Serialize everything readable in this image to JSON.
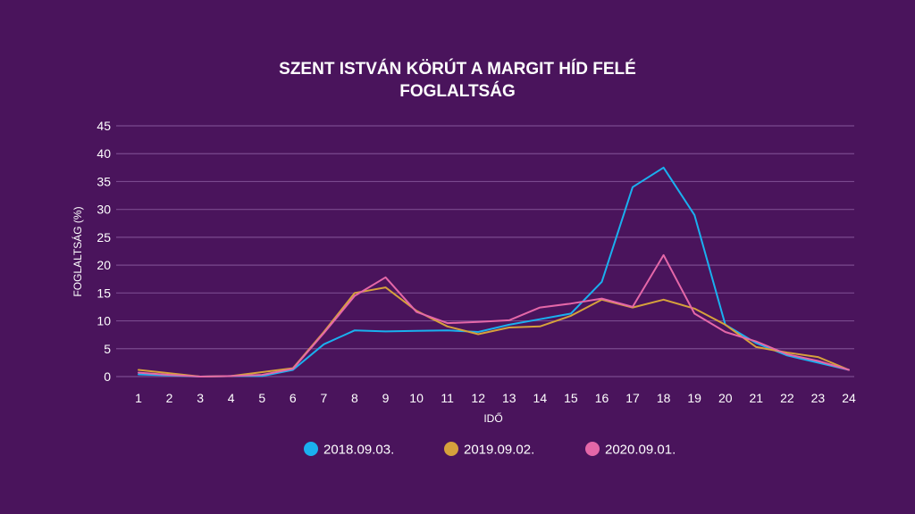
{
  "chart_data": {
    "type": "line",
    "title_line1": "SZENT ISTVÁN KÖRÚT A MARGIT HÍD FELÉ",
    "title_line2": "FOGLALTSÁG",
    "xlabel": "IDŐ",
    "ylabel": "FOGLALTSÁG (%)",
    "x": [
      1,
      2,
      3,
      4,
      5,
      6,
      7,
      8,
      9,
      10,
      11,
      12,
      13,
      14,
      15,
      16,
      17,
      18,
      19,
      20,
      21,
      22,
      23,
      24
    ],
    "y_ticks": [
      "0",
      "5",
      "10",
      "15",
      "20",
      "25",
      "30",
      "35",
      "40",
      "45"
    ],
    "ylim": [
      0,
      45
    ],
    "grid": true,
    "legend_position": "bottom",
    "series": [
      {
        "name": "2018.09.03.",
        "color": "#1ab0ef",
        "values": [
          0.4,
          0.2,
          0.0,
          0.1,
          0.1,
          1.2,
          5.8,
          8.3,
          8.1,
          8.2,
          8.3,
          8.0,
          9.3,
          10.3,
          11.3,
          17.0,
          34.0,
          37.5,
          29.0,
          9.3,
          6.0,
          3.8,
          2.5,
          1.2
        ]
      },
      {
        "name": "2019.09.02.",
        "color": "#d6a13c",
        "values": [
          1.2,
          0.6,
          0.0,
          0.1,
          0.8,
          1.5,
          8.0,
          15.0,
          16.0,
          11.8,
          9.0,
          7.6,
          8.8,
          9.0,
          10.9,
          13.8,
          12.4,
          13.8,
          12.2,
          9.3,
          5.3,
          4.3,
          3.5,
          1.2
        ]
      },
      {
        "name": "2020.09.01.",
        "color": "#e467a8",
        "values": [
          0.7,
          0.3,
          0.0,
          0.1,
          0.3,
          1.4,
          7.8,
          14.5,
          17.8,
          11.6,
          9.6,
          9.8,
          10.1,
          12.4,
          13.1,
          14.0,
          12.5,
          21.8,
          11.3,
          8.0,
          6.3,
          4.0,
          2.8,
          1.2
        ]
      }
    ]
  }
}
